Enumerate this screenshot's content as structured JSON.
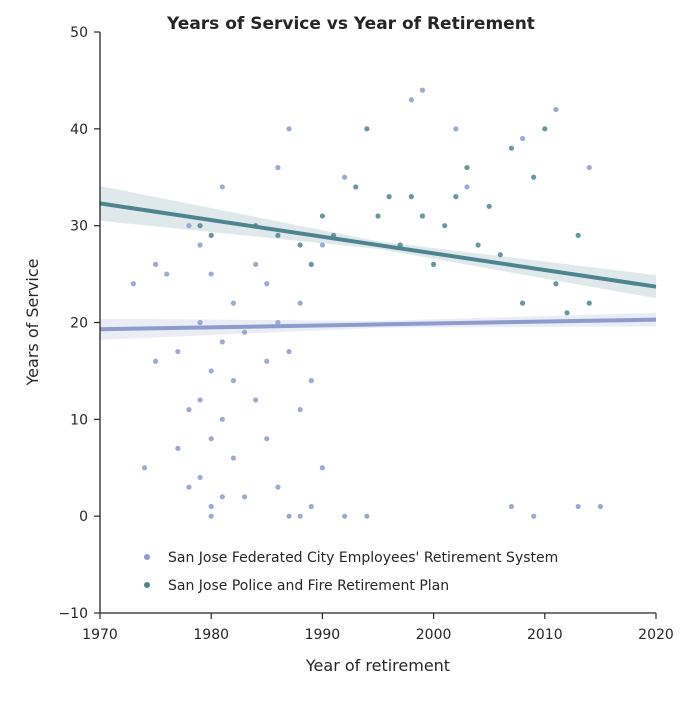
{
  "chart_data": {
    "type": "scatter",
    "title": "Years of Service vs Year of Retirement",
    "xlabel": "Year of retirement",
    "ylabel": "Years of Service",
    "xlim": [
      1970,
      2020
    ],
    "ylim": [
      -10,
      50
    ],
    "x_ticks": [
      "1970",
      "1980",
      "1990",
      "2000",
      "2010",
      "2020"
    ],
    "y_ticks": [
      "−10",
      "0",
      "10",
      "20",
      "30",
      "40",
      "50"
    ],
    "grid": false,
    "legend_position": "bottom-left",
    "series": [
      {
        "name": "San Jose Federated City Employees' Retirement System",
        "color": "#8c9ccb",
        "trend": {
          "x": [
            1970,
            2020
          ],
          "y": [
            19.3,
            20.3
          ]
        },
        "points": [
          [
            1973,
            24
          ],
          [
            1974,
            5
          ],
          [
            1975,
            26
          ],
          [
            1975,
            16
          ],
          [
            1976,
            25
          ],
          [
            1977,
            17
          ],
          [
            1977,
            7
          ],
          [
            1978,
            30
          ],
          [
            1978,
            11
          ],
          [
            1978,
            3
          ],
          [
            1979,
            28
          ],
          [
            1979,
            20
          ],
          [
            1979,
            12
          ],
          [
            1979,
            4
          ],
          [
            1980,
            1
          ],
          [
            1980,
            0
          ],
          [
            1980,
            8
          ],
          [
            1980,
            25
          ],
          [
            1980,
            15
          ],
          [
            1981,
            34
          ],
          [
            1981,
            18
          ],
          [
            1981,
            10
          ],
          [
            1981,
            2
          ],
          [
            1982,
            22
          ],
          [
            1982,
            14
          ],
          [
            1982,
            6
          ],
          [
            1983,
            19
          ],
          [
            1983,
            2
          ],
          [
            1984,
            26
          ],
          [
            1984,
            12
          ],
          [
            1985,
            24
          ],
          [
            1985,
            16
          ],
          [
            1985,
            8
          ],
          [
            1986,
            36
          ],
          [
            1986,
            20
          ],
          [
            1986,
            3
          ],
          [
            1987,
            40
          ],
          [
            1987,
            0
          ],
          [
            1987,
            17
          ],
          [
            1988,
            0
          ],
          [
            1988,
            22
          ],
          [
            1988,
            11
          ],
          [
            1989,
            1
          ],
          [
            1989,
            14
          ],
          [
            1990,
            5
          ],
          [
            1990,
            28
          ],
          [
            1992,
            0
          ],
          [
            1992,
            35
          ],
          [
            1994,
            0
          ],
          [
            1998,
            43
          ],
          [
            1999,
            44
          ],
          [
            2002,
            40
          ],
          [
            2003,
            34
          ],
          [
            2007,
            1
          ],
          [
            2008,
            39
          ],
          [
            2009,
            0
          ],
          [
            2011,
            42
          ],
          [
            2013,
            1
          ],
          [
            2014,
            36
          ],
          [
            2015,
            1
          ]
        ]
      },
      {
        "name": "San Jose Police and Fire Retirement Plan",
        "color": "#4e8490",
        "trend": {
          "x": [
            1970,
            2020
          ],
          "y": [
            32.3,
            23.7
          ]
        },
        "points": [
          [
            1979,
            30
          ],
          [
            1980,
            29
          ],
          [
            1984,
            30
          ],
          [
            1986,
            29
          ],
          [
            1988,
            28
          ],
          [
            1989,
            26
          ],
          [
            1990,
            31
          ],
          [
            1991,
            29
          ],
          [
            1993,
            34
          ],
          [
            1994,
            40
          ],
          [
            1995,
            31
          ],
          [
            1996,
            33
          ],
          [
            1997,
            28
          ],
          [
            1998,
            33
          ],
          [
            1999,
            31
          ],
          [
            2000,
            26
          ],
          [
            2001,
            30
          ],
          [
            2002,
            33
          ],
          [
            2003,
            36
          ],
          [
            2004,
            28
          ],
          [
            2005,
            32
          ],
          [
            2006,
            27
          ],
          [
            2007,
            38
          ],
          [
            2008,
            22
          ],
          [
            2009,
            35
          ],
          [
            2010,
            40
          ],
          [
            2011,
            24
          ],
          [
            2012,
            21
          ],
          [
            2013,
            29
          ],
          [
            2014,
            22
          ]
        ]
      }
    ]
  }
}
